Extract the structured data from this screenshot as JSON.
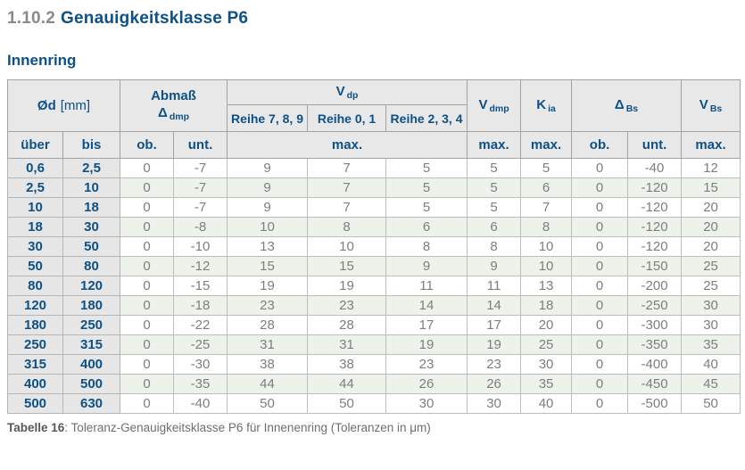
{
  "page": {
    "section_number": "1.10.2",
    "section_title": "Genauigkeitsklasse P6",
    "subtitle": "Innenring",
    "caption_label": "Tabelle 16",
    "caption_text": ": Toleranz-Genauigkeitsklasse P6 für Innenenring (Toleranzen in μm)"
  },
  "colors": {
    "accent_blue": "#0d5186",
    "section_number_gray": "#8a8a8a",
    "data_text_gray": "#7e7e7e",
    "header_bg": "#e8e8e8",
    "range_column_bg": "#e6e6e6",
    "stripe_green": "#edf3eb",
    "stripe_white": "#ffffff"
  },
  "table": {
    "header": {
      "od": {
        "label": "Ød",
        "unit": "[mm]"
      },
      "abmass": {
        "line1": "Abmaß",
        "symbol": "Δ",
        "sub": "dmp"
      },
      "vdp": {
        "base": "V",
        "sub": "dp"
      },
      "reihe_789": "Reihe 7, 8, 9",
      "reihe_01": "Reihe 0, 1",
      "reihe_234": "Reihe 2, 3, 4",
      "vdmp": {
        "base": "V",
        "sub": "dmp"
      },
      "kia": {
        "base": "K",
        "sub": "ia"
      },
      "dbs": {
        "base": "Δ",
        "sub": "Bs"
      },
      "vbs": {
        "base": "V",
        "sub": "Bs"
      }
    },
    "sub_header": {
      "ueber": "über",
      "bis": "bis",
      "ob": "ob.",
      "unt": "unt.",
      "max_vdp": "max.",
      "max_vdmp": "max.",
      "max_kia": "max.",
      "ob_bs": "ob.",
      "unt_bs": "unt.",
      "max_vbs": "max."
    },
    "rows": [
      [
        "0,6",
        "2,5",
        "0",
        "-7",
        "9",
        "7",
        "5",
        "5",
        "5",
        "0",
        "-40",
        "12"
      ],
      [
        "2,5",
        "10",
        "0",
        "-7",
        "9",
        "7",
        "5",
        "5",
        "6",
        "0",
        "-120",
        "15"
      ],
      [
        "10",
        "18",
        "0",
        "-7",
        "9",
        "7",
        "5",
        "5",
        "7",
        "0",
        "-120",
        "20"
      ],
      [
        "18",
        "30",
        "0",
        "-8",
        "10",
        "8",
        "6",
        "6",
        "8",
        "0",
        "-120",
        "20"
      ],
      [
        "30",
        "50",
        "0",
        "-10",
        "13",
        "10",
        "8",
        "8",
        "10",
        "0",
        "-120",
        "20"
      ],
      [
        "50",
        "80",
        "0",
        "-12",
        "15",
        "15",
        "9",
        "9",
        "10",
        "0",
        "-150",
        "25"
      ],
      [
        "80",
        "120",
        "0",
        "-15",
        "19",
        "19",
        "11",
        "11",
        "13",
        "0",
        "-200",
        "25"
      ],
      [
        "120",
        "180",
        "0",
        "-18",
        "23",
        "23",
        "14",
        "14",
        "18",
        "0",
        "-250",
        "30"
      ],
      [
        "180",
        "250",
        "0",
        "-22",
        "28",
        "28",
        "17",
        "17",
        "20",
        "0",
        "-300",
        "30"
      ],
      [
        "250",
        "315",
        "0",
        "-25",
        "31",
        "31",
        "19",
        "19",
        "25",
        "0",
        "-350",
        "35"
      ],
      [
        "315",
        "400",
        "0",
        "-30",
        "38",
        "38",
        "23",
        "23",
        "30",
        "0",
        "-400",
        "40"
      ],
      [
        "400",
        "500",
        "0",
        "-35",
        "44",
        "44",
        "26",
        "26",
        "35",
        "0",
        "-450",
        "45"
      ],
      [
        "500",
        "630",
        "0",
        "-40",
        "50",
        "50",
        "30",
        "30",
        "40",
        "0",
        "-500",
        "50"
      ]
    ]
  }
}
